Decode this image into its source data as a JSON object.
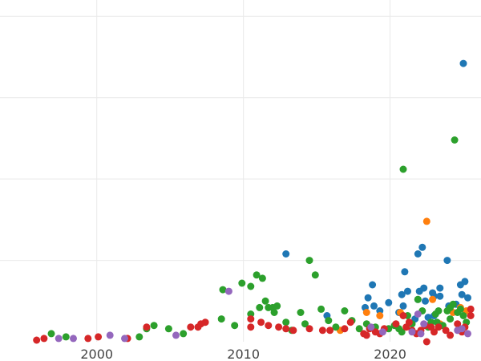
{
  "chart_data": {
    "type": "scatter",
    "title": "",
    "xlabel": "",
    "ylabel": "",
    "grid": true,
    "xlim": [
      1993.4,
      2026.2
    ],
    "ylim": [
      0,
      21
    ],
    "xticks": [
      2000,
      2010,
      2020
    ],
    "xtick_labels": [
      "2000",
      "2010",
      "2020"
    ],
    "yticks": [
      5,
      10,
      15,
      20
    ],
    "colors": {
      "blue": "#1f77b4",
      "orange": "#ff7f0e",
      "green": "#2ca02c",
      "red": "#d62728",
      "purple": "#9467bd"
    },
    "series": [
      {
        "color": "blue",
        "points": [
          [
            2012.9,
            5.4
          ],
          [
            2015.7,
            1.6
          ],
          [
            2018.3,
            2.1
          ],
          [
            2018.5,
            2.7
          ],
          [
            2018.8,
            3.5
          ],
          [
            2018.9,
            2.2
          ],
          [
            2019.3,
            1.9
          ],
          [
            2019.9,
            2.4
          ],
          [
            2020.6,
            1.8
          ],
          [
            2020.8,
            2.9
          ],
          [
            2020.9,
            2.2
          ],
          [
            2021.0,
            4.3
          ],
          [
            2021.2,
            3.1
          ],
          [
            2021.7,
            1.4
          ],
          [
            2021.9,
            2.6
          ],
          [
            2021.9,
            5.4
          ],
          [
            2022.0,
            3.1
          ],
          [
            2022.2,
            5.8
          ],
          [
            2022.3,
            3.3
          ],
          [
            2022.4,
            2.5
          ],
          [
            2022.6,
            1.5
          ],
          [
            2022.9,
            3.0
          ],
          [
            2023.0,
            2.8
          ],
          [
            2023.4,
            2.8
          ],
          [
            2023.4,
            3.3
          ],
          [
            2023.9,
            5.0
          ],
          [
            2024.0,
            2.2
          ],
          [
            2024.8,
            3.5
          ],
          [
            2024.9,
            2.9
          ],
          [
            2025.0,
            17.1
          ],
          [
            2025.1,
            3.7
          ],
          [
            2025.3,
            2.7
          ],
          [
            2024.5,
            2.3
          ],
          [
            2023.0,
            1.6
          ]
        ]
      },
      {
        "color": "orange",
        "points": [
          [
            2016.6,
            0.7
          ],
          [
            2018.4,
            1.8
          ],
          [
            2019.3,
            1.6
          ],
          [
            2020.4,
            1.0
          ],
          [
            2020.7,
            1.8
          ],
          [
            2022.5,
            7.4
          ],
          [
            2022.9,
            2.6
          ],
          [
            2023.4,
            1.1
          ],
          [
            2024.3,
            1.8
          ],
          [
            2024.8,
            2.1
          ],
          [
            2025.2,
            1.9
          ]
        ]
      },
      {
        "color": "green",
        "points": [
          [
            1996.9,
            0.5
          ],
          [
            1997.9,
            0.3
          ],
          [
            2002.9,
            0.3
          ],
          [
            2003.4,
            0.8
          ],
          [
            2003.9,
            1.0
          ],
          [
            2004.9,
            0.8
          ],
          [
            2005.9,
            0.5
          ],
          [
            2008.5,
            1.4
          ],
          [
            2008.6,
            3.2
          ],
          [
            2009.4,
            1.0
          ],
          [
            2009.9,
            3.6
          ],
          [
            2010.5,
            3.4
          ],
          [
            2010.5,
            1.7
          ],
          [
            2010.9,
            4.1
          ],
          [
            2011.1,
            2.1
          ],
          [
            2011.3,
            3.9
          ],
          [
            2011.5,
            2.5
          ],
          [
            2011.7,
            2.1
          ],
          [
            2012.0,
            2.1
          ],
          [
            2012.1,
            1.8
          ],
          [
            2012.3,
            2.2
          ],
          [
            2012.9,
            1.2
          ],
          [
            2013.3,
            0.7
          ],
          [
            2013.9,
            1.8
          ],
          [
            2014.2,
            1.1
          ],
          [
            2014.5,
            5.0
          ],
          [
            2014.9,
            4.1
          ],
          [
            2015.3,
            2.0
          ],
          [
            2015.8,
            1.3
          ],
          [
            2016.3,
            0.9
          ],
          [
            2016.9,
            1.9
          ],
          [
            2017.4,
            1.3
          ],
          [
            2017.9,
            0.8
          ],
          [
            2018.4,
            1.1
          ],
          [
            2019.0,
            0.9
          ],
          [
            2019.9,
            0.8
          ],
          [
            2020.3,
            1.0
          ],
          [
            2020.6,
            0.8
          ],
          [
            2020.8,
            0.6
          ],
          [
            2020.9,
            10.6
          ],
          [
            2021.2,
            1.6
          ],
          [
            2021.5,
            1.1
          ],
          [
            2021.9,
            2.6
          ],
          [
            2022.2,
            1.9
          ],
          [
            2022.6,
            0.9
          ],
          [
            2022.8,
            1.2
          ],
          [
            2023.1,
            1.7
          ],
          [
            2023.3,
            1.9
          ],
          [
            2023.6,
            1.0
          ],
          [
            2023.9,
            1.9
          ],
          [
            2024.1,
            1.4
          ],
          [
            2024.3,
            2.3
          ],
          [
            2024.4,
            12.4
          ],
          [
            2024.6,
            1.8
          ],
          [
            2024.8,
            2.0
          ],
          [
            2025.0,
            1.6
          ],
          [
            2025.2,
            1.2
          ],
          [
            2023.2,
            1.2
          ],
          [
            2024.1,
            2.1
          ]
        ]
      },
      {
        "color": "red",
        "points": [
          [
            1995.9,
            0.1
          ],
          [
            1996.4,
            0.2
          ],
          [
            1999.4,
            0.2
          ],
          [
            2000.1,
            0.3
          ],
          [
            2002.1,
            0.2
          ],
          [
            2003.4,
            0.9
          ],
          [
            2006.4,
            0.9
          ],
          [
            2006.9,
            0.9
          ],
          [
            2007.1,
            1.1
          ],
          [
            2007.4,
            1.2
          ],
          [
            2010.5,
            1.4
          ],
          [
            2010.5,
            0.9
          ],
          [
            2011.2,
            1.2
          ],
          [
            2011.7,
            1.0
          ],
          [
            2012.4,
            0.9
          ],
          [
            2012.9,
            0.8
          ],
          [
            2013.4,
            0.7
          ],
          [
            2014.5,
            0.8
          ],
          [
            2015.4,
            0.7
          ],
          [
            2015.9,
            0.7
          ],
          [
            2016.9,
            0.8
          ],
          [
            2017.3,
            1.2
          ],
          [
            2018.2,
            0.5
          ],
          [
            2018.4,
            0.4
          ],
          [
            2018.6,
            0.8
          ],
          [
            2019.0,
            0.6
          ],
          [
            2019.3,
            0.5
          ],
          [
            2019.6,
            0.8
          ],
          [
            2020.4,
            1.1
          ],
          [
            2020.9,
            1.6
          ],
          [
            2021.1,
            0.9
          ],
          [
            2021.5,
            0.7
          ],
          [
            2021.8,
            0.5
          ],
          [
            2022.1,
            0.7
          ],
          [
            2022.4,
            1.0
          ],
          [
            2022.5,
            0.0
          ],
          [
            2022.8,
            0.9
          ],
          [
            2023.3,
            0.9
          ],
          [
            2023.8,
            0.7
          ],
          [
            2024.1,
            0.4
          ],
          [
            2024.6,
            1.1
          ],
          [
            2024.9,
            0.6
          ],
          [
            2025.1,
            0.9
          ],
          [
            2025.5,
            1.6
          ],
          [
            2025.5,
            2.0
          ],
          [
            2021.3,
            1.2
          ],
          [
            2023.0,
            0.6
          ]
        ]
      },
      {
        "color": "purple",
        "points": [
          [
            1997.4,
            0.2
          ],
          [
            1998.4,
            0.2
          ],
          [
            2000.9,
            0.4
          ],
          [
            2001.9,
            0.2
          ],
          [
            2005.4,
            0.4
          ],
          [
            2009.0,
            3.1
          ],
          [
            2018.7,
            0.9
          ],
          [
            2019.5,
            0.6
          ],
          [
            2021.5,
            0.6
          ],
          [
            2021.9,
            1.7
          ],
          [
            2022.1,
            0.5
          ],
          [
            2022.3,
            1.1
          ],
          [
            2024.6,
            0.7
          ],
          [
            2024.9,
            0.8
          ],
          [
            2025.3,
            0.5
          ]
        ]
      }
    ]
  }
}
